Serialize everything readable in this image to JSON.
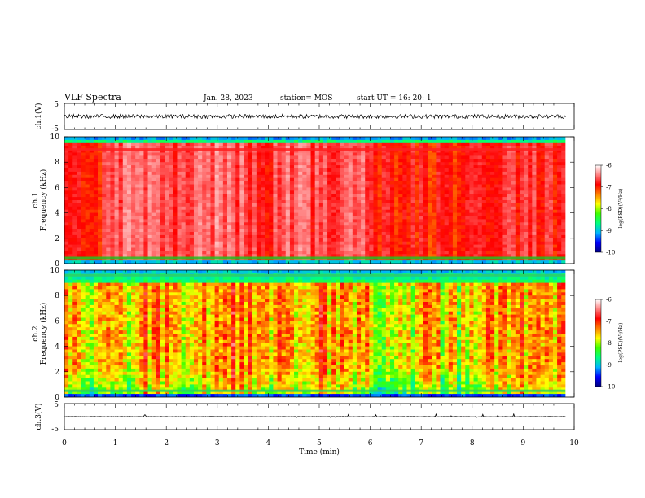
{
  "header": {
    "title": "VLF Spectra",
    "date": "Jan. 28, 2023",
    "station": "station= MOS",
    "start": "start  UT =   16: 20: 1"
  },
  "colorbar": {
    "label": "log(PSD)(V²/Hz)",
    "ticks": [
      "-6",
      "-7",
      "-8",
      "-9",
      "-10"
    ],
    "stops": [
      "#000080",
      "#0000ff",
      "#00b4ff",
      "#00ff80",
      "#40ff00",
      "#ffff00",
      "#ff8000",
      "#ff0000",
      "#ff8080",
      "#ffffff"
    ]
  },
  "chart_data": [
    {
      "type": "line",
      "name": "ch1-waveform",
      "ylabel": "ch.1(V)",
      "ylim": [
        -5,
        5
      ],
      "yticks": [
        "5",
        "-5"
      ],
      "level": 0,
      "xlim": [
        0,
        9.83
      ]
    },
    {
      "type": "heatmap",
      "name": "ch1-spectrogram",
      "ylabel_top": "ch.1",
      "ylabel": "Frequency (kHz)",
      "ylim": [
        0,
        10
      ],
      "yticks": [
        "0",
        "2",
        "4",
        "6",
        "8",
        "10"
      ],
      "zlim": [
        -10,
        -6
      ],
      "xlim": [
        0,
        9.83
      ],
      "time_profile": {
        "t": [
          0.0,
          0.4,
          0.8,
          1.0,
          1.3,
          1.6,
          2.0,
          2.2,
          2.5,
          2.8,
          3.1,
          3.4,
          3.6,
          3.9,
          4.2,
          4.5,
          4.8,
          5.1,
          5.4,
          5.7,
          6.0,
          6.5,
          7.0,
          7.4,
          7.7,
          8.0,
          8.3,
          8.6,
          9.0,
          9.4,
          9.83
        ],
        "v": [
          0.85,
          0.8,
          0.75,
          0.5,
          0.35,
          0.3,
          0.4,
          0.6,
          0.5,
          0.35,
          0.15,
          0.35,
          0.55,
          0.6,
          0.55,
          0.4,
          0.5,
          0.6,
          0.3,
          0.15,
          0.7,
          0.85,
          0.9,
          0.95,
          1.0,
          0.95,
          0.8,
          0.75,
          0.7,
          0.65,
          0.7
        ]
      },
      "bands": [
        {
          "kHz": 9.0,
          "level": 0.9
        },
        {
          "kHz": 0.45,
          "level": 0.8
        }
      ]
    },
    {
      "type": "heatmap",
      "name": "ch2-spectrogram",
      "ylabel_top": "ch.2",
      "ylabel": "Frequency (kHz)",
      "ylim": [
        0,
        10
      ],
      "yticks": [
        "0",
        "2",
        "4",
        "6",
        "8",
        "10"
      ],
      "zlim": [
        -10,
        -6
      ],
      "xlim": [
        0,
        9.83
      ],
      "time_profile": {
        "t": [
          0.0,
          0.3,
          0.6,
          0.9,
          1.2,
          1.5,
          1.8,
          2.1,
          2.4,
          2.7,
          3.0,
          3.3,
          3.6,
          3.9,
          4.2,
          4.5,
          4.8,
          5.1,
          5.4,
          5.7,
          6.0,
          6.3,
          6.6,
          6.9,
          7.2,
          7.5,
          7.8,
          8.1,
          8.4,
          8.7,
          9.0,
          9.3,
          9.6,
          9.83
        ],
        "v": [
          0.55,
          0.5,
          0.45,
          0.45,
          0.55,
          0.75,
          0.7,
          0.55,
          0.55,
          0.7,
          0.75,
          0.8,
          0.7,
          0.55,
          0.6,
          0.7,
          0.75,
          0.75,
          0.7,
          0.6,
          0.5,
          0.45,
          0.45,
          0.5,
          0.55,
          0.5,
          0.45,
          0.55,
          0.6,
          0.7,
          0.75,
          0.7,
          0.65,
          0.65
        ]
      },
      "bands": [
        {
          "kHz": 9.6,
          "level": 0.35
        },
        {
          "kHz": 0.5,
          "level": 0.55
        }
      ]
    },
    {
      "type": "line",
      "name": "ch3-waveform",
      "ylabel": "ch.3(V)",
      "ylim": [
        -5,
        5
      ],
      "yticks": [
        "5",
        "-5"
      ],
      "level": 0,
      "xlim": [
        0,
        9.83
      ]
    }
  ],
  "xaxis": {
    "label": "Time  (min)",
    "xlim": [
      0,
      10
    ],
    "ticks": [
      "0",
      "1",
      "2",
      "3",
      "4",
      "5",
      "6",
      "7",
      "8",
      "9",
      "10"
    ]
  }
}
